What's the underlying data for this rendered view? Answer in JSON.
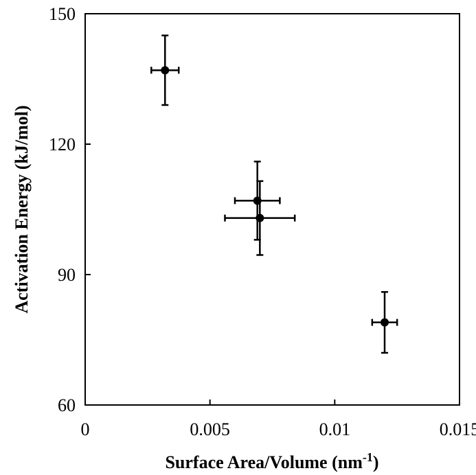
{
  "chart_data": {
    "type": "scatter",
    "title": "",
    "xlabel": "Surface Area/Volume (nm",
    "xlabel_sup": "-1",
    "xlabel_end": ")",
    "ylabel": "Activation Energy (kJ/mol)",
    "xlim": [
      0,
      0.015
    ],
    "ylim": [
      60,
      150
    ],
    "x_ticks": [
      "0",
      "0.005",
      "0.01",
      "0.015"
    ],
    "y_ticks": [
      "60",
      "90",
      "120",
      "150"
    ],
    "grid": false,
    "legend": false,
    "points": [
      {
        "x": 0.0032,
        "y": 137,
        "xerr": 0.00055,
        "yerr": 8
      },
      {
        "x": 0.0069,
        "y": 107,
        "xerr": 0.0009,
        "yerr": 9
      },
      {
        "x": 0.007,
        "y": 103,
        "xerr": 0.0014,
        "yerr": 8.5
      },
      {
        "x": 0.012,
        "y": 79,
        "xerr": 0.0005,
        "yerr": 7
      }
    ],
    "colors": {
      "marker": "#000000",
      "axis": "#000000"
    }
  }
}
